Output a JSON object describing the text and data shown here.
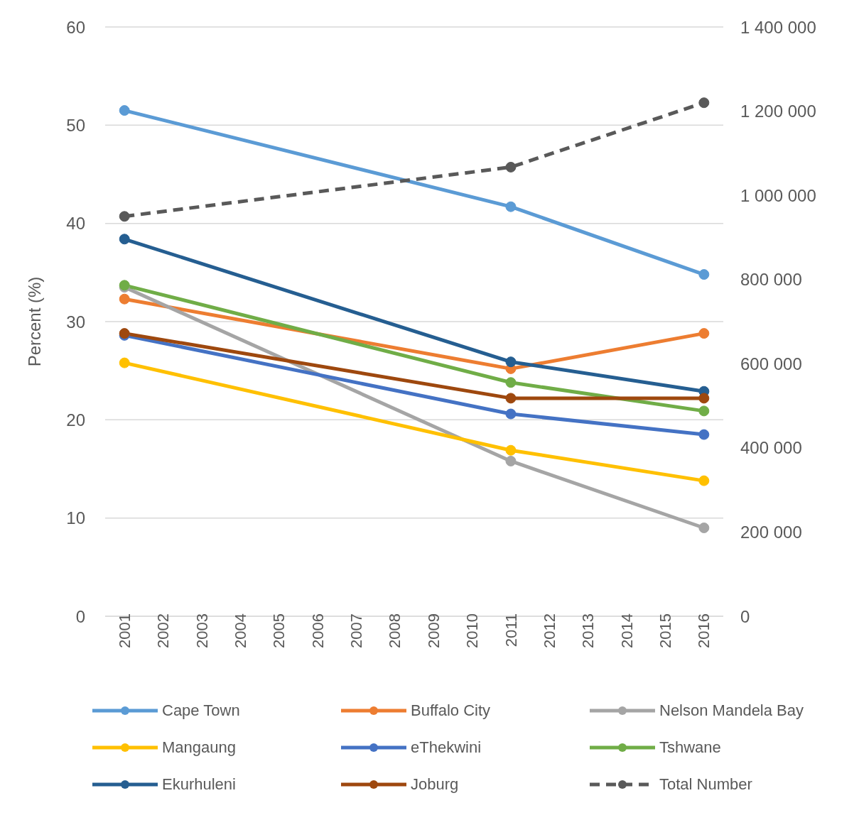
{
  "chart_data": {
    "type": "line",
    "ylabel": "Percent (%)",
    "x": [
      2001,
      2011,
      2016
    ],
    "xlim": [
      2000.5,
      2016.5
    ],
    "xticks": [
      2001,
      2002,
      2003,
      2004,
      2005,
      2006,
      2007,
      2008,
      2009,
      2010,
      2011,
      2012,
      2013,
      2014,
      2015,
      2016
    ],
    "ylim": [
      0,
      60
    ],
    "yticks": [
      0,
      10,
      20,
      30,
      40,
      50,
      60
    ],
    "y2lim": [
      0,
      1400000
    ],
    "y2ticks": [
      0,
      {
        "value": 200000,
        "label": "200 000"
      },
      {
        "value": 400000,
        "label": "400 000"
      },
      {
        "value": 600000,
        "label": "600 000"
      },
      {
        "value": 800000,
        "label": "800 000"
      },
      {
        "value": 1000000,
        "label": "1 000 000"
      },
      {
        "value": 1200000,
        "label": "1 200 000"
      },
      {
        "value": 1400000,
        "label": "1 400 000"
      }
    ],
    "grid": "y",
    "legend": "bottom",
    "marker": "circle",
    "series": [
      {
        "name": "Cape Town",
        "color": "#5b9bd5",
        "values": [
          51.5,
          41.7,
          34.8
        ]
      },
      {
        "name": "Buffalo City",
        "color": "#ed7d31",
        "values": [
          32.3,
          25.2,
          28.8
        ]
      },
      {
        "name": "Nelson Mandela Bay",
        "color": "#a5a5a5",
        "values": [
          33.5,
          15.8,
          9.0
        ]
      },
      {
        "name": "Mangaung",
        "color": "#ffc000",
        "values": [
          25.8,
          16.9,
          13.8
        ]
      },
      {
        "name": "eThekwini",
        "color": "#4472c4",
        "values": [
          28.6,
          20.6,
          18.5
        ]
      },
      {
        "name": "Tshwane",
        "color": "#70ad47",
        "values": [
          33.7,
          23.8,
          20.9
        ]
      },
      {
        "name": "Ekurhuleni",
        "color": "#255e91",
        "values": [
          38.4,
          25.9,
          22.9
        ]
      },
      {
        "name": "Joburg",
        "color": "#9e480e",
        "values": [
          28.8,
          22.2,
          22.2
        ]
      },
      {
        "name": "Total Number",
        "color": "#595959",
        "axis": "y2",
        "line_style": "dashed",
        "values": [
          950000,
          1067000,
          1220000
        ]
      }
    ]
  }
}
